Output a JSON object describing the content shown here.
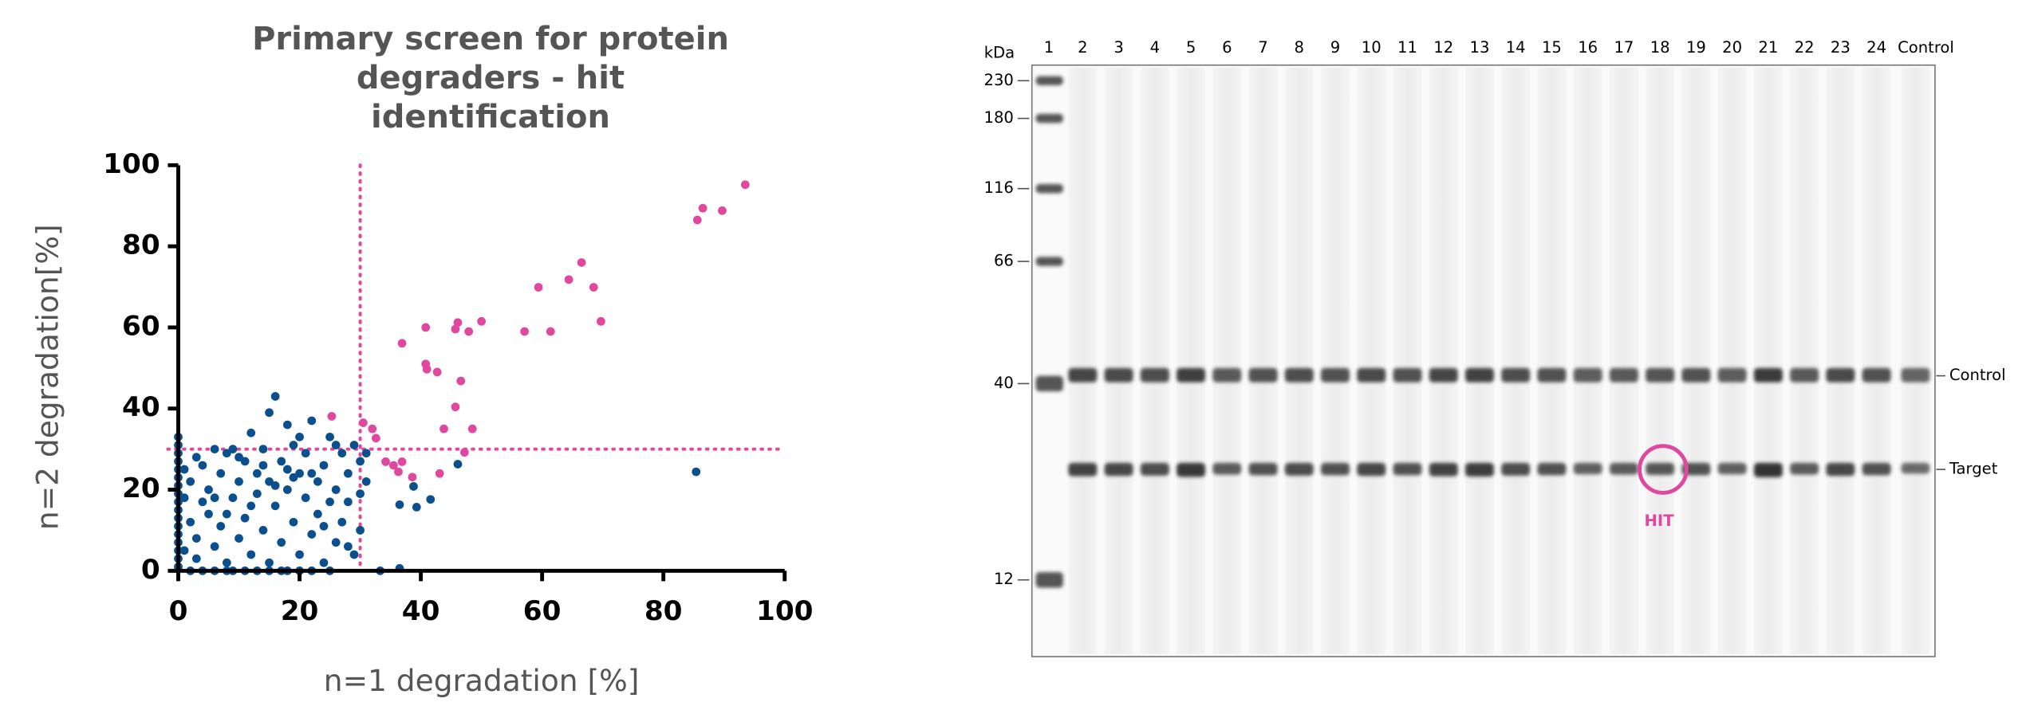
{
  "chart_data": {
    "type": "scatter",
    "title": "Primary screen for protein degraders - hit identification",
    "x_label": "n=1 degradation [%]",
    "y_label": "n=2 degradation[%]",
    "xlim": [
      0,
      100
    ],
    "ylim": [
      0,
      100
    ],
    "xticks": [
      0,
      20,
      40,
      60,
      80,
      100
    ],
    "yticks": [
      0,
      20,
      40,
      60,
      80,
      100
    ],
    "threshold_x": 30,
    "threshold_y": 30,
    "threshold_color": "#e0479e",
    "series": [
      {
        "color": "#0b4f8f",
        "x": [
          0,
          0,
          0,
          0,
          0,
          0,
          0,
          0,
          0,
          0,
          0,
          0,
          0,
          0,
          0,
          0,
          0,
          2,
          4,
          6,
          8,
          9,
          11,
          13,
          15,
          17,
          18,
          20,
          22,
          25,
          1,
          2,
          1,
          2,
          3,
          1,
          3,
          4,
          4,
          5,
          5,
          6,
          6,
          7,
          7,
          8,
          8,
          9,
          9,
          10,
          10,
          11,
          11,
          12,
          12,
          13,
          13,
          14,
          14,
          15,
          15,
          15,
          16,
          16,
          17,
          17,
          18,
          18,
          19,
          19,
          20,
          20,
          21,
          21,
          22,
          22,
          23,
          23,
          24,
          24,
          25,
          25,
          26,
          26,
          27,
          27,
          28,
          28,
          29,
          29,
          30,
          30,
          30,
          31,
          31,
          16,
          12,
          18,
          10,
          20,
          14,
          22,
          8,
          6,
          19,
          24,
          26,
          28,
          3,
          36.5,
          38.8,
          39.3,
          41.6,
          46.1,
          85.4,
          36.5,
          33.3
        ],
        "values": [
          33,
          31,
          29,
          27,
          25,
          23,
          21,
          19,
          17,
          15,
          13,
          11,
          9,
          7,
          5,
          3,
          1,
          0,
          0,
          0,
          0,
          0,
          0,
          0,
          0,
          0,
          0,
          0,
          0,
          0,
          25,
          22,
          18,
          12,
          8,
          5,
          3,
          17,
          26,
          14,
          20,
          30,
          6,
          24,
          11,
          29,
          2,
          18,
          30,
          8,
          22,
          13,
          27,
          4,
          34,
          19,
          24,
          10,
          30,
          2,
          22,
          39,
          16,
          43,
          27,
          7,
          36,
          20,
          12,
          31,
          24,
          4,
          18,
          29,
          37,
          9,
          22,
          14,
          26,
          2,
          33,
          17,
          20,
          7,
          29,
          12,
          24,
          17,
          31,
          4,
          27,
          19,
          10,
          22,
          29,
          21,
          16,
          25,
          28,
          33,
          26,
          24,
          14,
          18,
          23,
          11,
          31,
          6,
          28,
          16.3,
          20.8,
          15.7,
          17.6,
          26.3,
          24.4,
          0.6,
          0
        ]
      },
      {
        "color": "#e0479e",
        "x": [
          93.5,
          86.5,
          85.6,
          89.7,
          66.5,
          64.4,
          59.4,
          68.5,
          69.7,
          50,
          57.1,
          61.4,
          46.1,
          45.7,
          47.9,
          40.8,
          36.9,
          40.8,
          41,
          42.7,
          46.6,
          45.7,
          43.8,
          48.5,
          25.3,
          30.5,
          32,
          32.6,
          47.2,
          34.2,
          35.5,
          36.9,
          36.3,
          38.6,
          43.1
        ],
        "values": [
          95.2,
          89.4,
          86.5,
          88.8,
          76,
          71.8,
          69.9,
          69.9,
          61.5,
          61.5,
          59,
          59,
          61.2,
          59.6,
          59,
          60,
          56.1,
          51,
          49.7,
          49,
          46.8,
          40.4,
          35,
          35,
          38.1,
          36.5,
          35,
          32.7,
          29.2,
          26.9,
          26,
          26.9,
          24.4,
          23.1,
          24
        ]
      }
    ]
  },
  "gel": {
    "unit": "kDa",
    "lanes": [
      "1",
      "2",
      "3",
      "4",
      "5",
      "6",
      "7",
      "8",
      "9",
      "10",
      "11",
      "12",
      "13",
      "14",
      "15",
      "16",
      "17",
      "18",
      "19",
      "20",
      "21",
      "22",
      "23",
      "24",
      "Control"
    ],
    "markers": [
      230,
      180,
      116,
      66,
      40,
      12
    ],
    "band_labels": [
      "Control",
      "Target"
    ],
    "hit_label": "HIT"
  }
}
